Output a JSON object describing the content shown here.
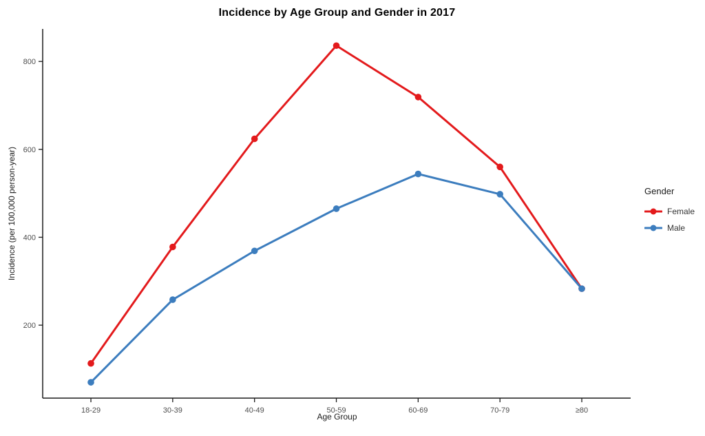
{
  "chart_data": {
    "type": "line",
    "title": "Incidence by Age Group and Gender in 2017",
    "xlabel": "Age Group",
    "ylabel": "Incidence (per 100,000 person-year)",
    "categories": [
      "18-29",
      "30-39",
      "40-49",
      "50-59",
      "60-69",
      "70-79",
      "≥80"
    ],
    "series": [
      {
        "name": "Female",
        "color": "#E31A1C",
        "values": [
          113,
          378,
          624,
          836,
          719,
          560,
          283
        ]
      },
      {
        "name": "Male",
        "color": "#3C7DBE",
        "values": [
          70,
          258,
          369,
          465,
          544,
          498,
          283
        ]
      }
    ],
    "y_ticks": [
      200,
      400,
      600,
      800
    ],
    "ylim": [
      34,
      874
    ],
    "grid": false,
    "legend": {
      "title": "Gender",
      "position": "right"
    }
  },
  "style": {
    "axis_color": "#1a1a1a",
    "tick_label_color": "#4d4d4d",
    "background": "#ffffff"
  }
}
